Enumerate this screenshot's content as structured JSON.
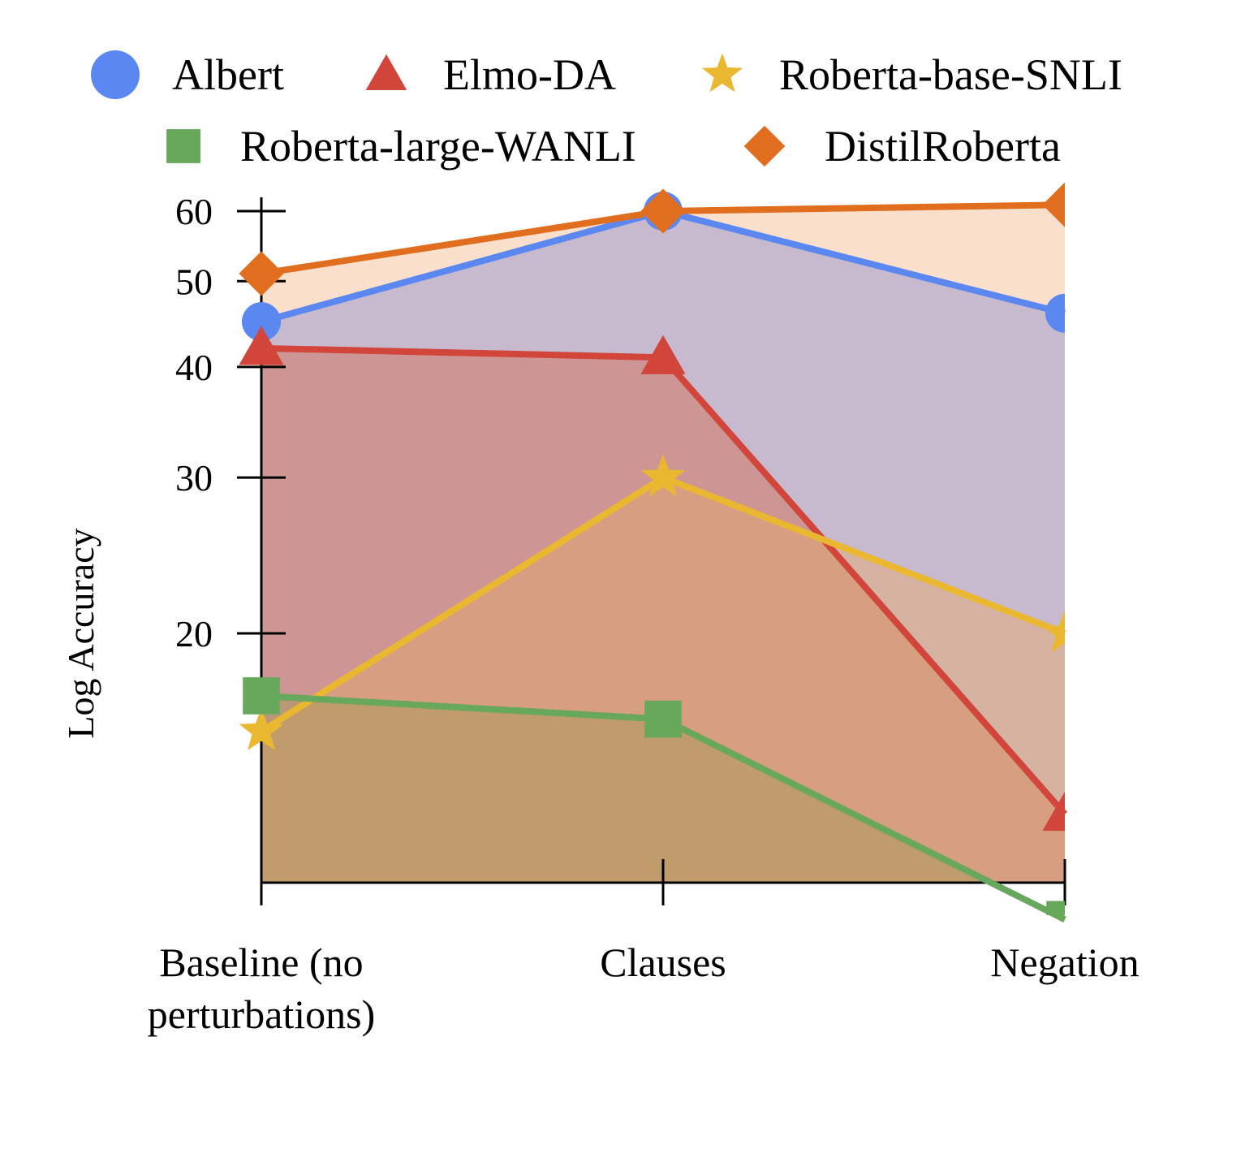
{
  "chart_data": {
    "type": "area",
    "ylabel": "Log Accuracy",
    "xlabel": "",
    "y_scale": "log",
    "ylim": [
      9.5,
      61
    ],
    "y_ticks": [
      20,
      30,
      40,
      50,
      60
    ],
    "y_tick_labels": [
      "20",
      "30",
      "40",
      "50",
      "60"
    ],
    "categories": [
      "Baseline (no perturbations)",
      "Clauses",
      "Negation"
    ],
    "category_label_lines": [
      [
        "Baseline (no",
        "perturbations)"
      ],
      [
        "Clauses"
      ],
      [
        "Negation"
      ]
    ],
    "legend_position": "top",
    "grid": false,
    "series": [
      {
        "name": "Albert",
        "values": [
          45,
          60,
          46
        ],
        "color": "#5b88f0",
        "fill": "#8b8fd1",
        "marker": "circle"
      },
      {
        "name": "Elmo-DA",
        "values": [
          42,
          41,
          12.5
        ],
        "color": "#d1453a",
        "fill": "#d26a4e",
        "marker": "triangle"
      },
      {
        "name": "Roberta-base-SNLI",
        "values": [
          15.5,
          30,
          20
        ],
        "color": "#eab731",
        "fill": "#e4a96b",
        "marker": "star"
      },
      {
        "name": "Roberta-large-WANLI",
        "values": [
          17,
          16,
          9.5
        ],
        "color": "#67a85c",
        "fill": "#a49a55",
        "marker": "square"
      },
      {
        "name": "DistilRoberta",
        "values": [
          51,
          60,
          61
        ],
        "color": "#e06e1e",
        "fill": "#f2b88e",
        "marker": "diamond"
      }
    ]
  }
}
